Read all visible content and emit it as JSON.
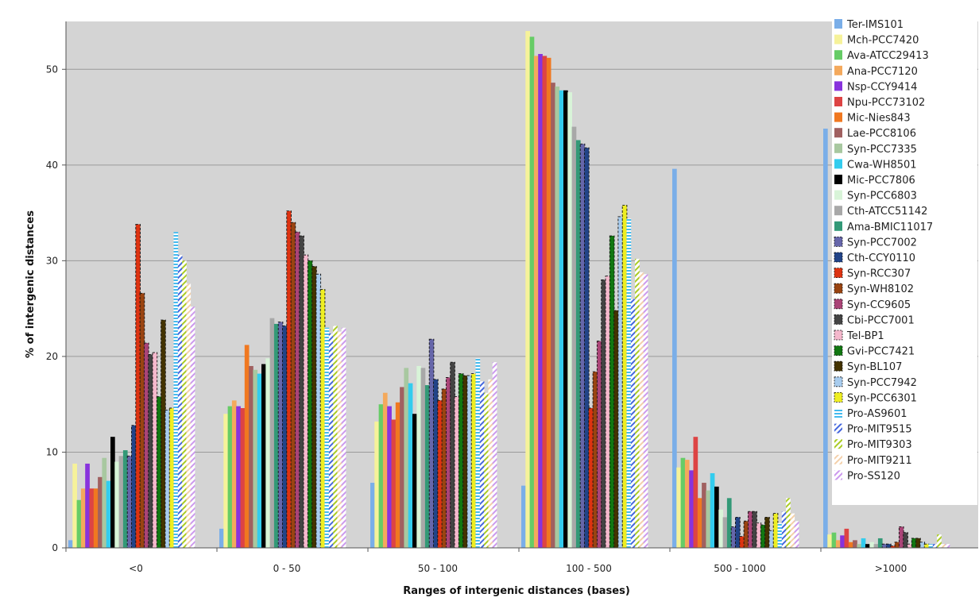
{
  "chart_data": {
    "type": "bar",
    "title": "",
    "xlabel": "Ranges of intergenic distances (bases)",
    "ylabel": "% of intergenic distances",
    "ylim": [
      0,
      55
    ],
    "yticks": [
      0,
      10,
      20,
      30,
      40,
      50
    ],
    "grid": true,
    "legend_position": "right",
    "categories": [
      "<0",
      "0 - 50",
      "50 - 100",
      "100 - 500",
      "500 - 1000",
      ">1000"
    ],
    "series": [
      {
        "name": "Ter-IMS101",
        "color": "#7aaee8",
        "pattern": "solid",
        "values": [
          0.8,
          2.0,
          6.8,
          6.5,
          39.6,
          43.8
        ]
      },
      {
        "name": "Mch-PCC7420",
        "color": "#f6f29a",
        "pattern": "solid",
        "values": [
          8.8,
          14.0,
          13.2,
          54.0,
          8.4,
          1.4
        ]
      },
      {
        "name": "Ava-ATCC29413",
        "color": "#66cc66",
        "pattern": "solid",
        "values": [
          5.0,
          14.8,
          15.0,
          53.4,
          9.4,
          1.6
        ]
      },
      {
        "name": "Ana-PCC7120",
        "color": "#f4a95c",
        "pattern": "solid",
        "values": [
          6.2,
          15.4,
          16.2,
          51.4,
          9.2,
          0.8
        ]
      },
      {
        "name": "Nsp-CCY9414",
        "color": "#8833dd",
        "pattern": "solid",
        "values": [
          8.8,
          14.8,
          14.8,
          51.6,
          8.1,
          1.3
        ]
      },
      {
        "name": "Npu-PCC73102",
        "color": "#dd4444",
        "pattern": "solid",
        "values": [
          6.2,
          14.6,
          13.4,
          51.4,
          11.6,
          2.0
        ]
      },
      {
        "name": "Mic-Nies843",
        "color": "#f07820",
        "pattern": "solid",
        "values": [
          6.2,
          21.2,
          15.2,
          51.2,
          5.2,
          0.6
        ]
      },
      {
        "name": "Lae-PCC8106",
        "color": "#a06060",
        "pattern": "solid",
        "values": [
          7.4,
          19.0,
          16.8,
          48.6,
          6.8,
          0.8
        ]
      },
      {
        "name": "Syn-PCC7335",
        "color": "#a8c8a0",
        "pattern": "solid",
        "values": [
          9.4,
          18.6,
          18.8,
          48.2,
          6.0,
          0.4
        ]
      },
      {
        "name": "Cwa-WH8501",
        "color": "#33ccee",
        "pattern": "solid",
        "values": [
          7.0,
          18.2,
          17.2,
          47.8,
          7.8,
          1.0
        ]
      },
      {
        "name": "Mic-PCC7806",
        "color": "#000000",
        "pattern": "solid",
        "values": [
          11.6,
          19.2,
          14.0,
          47.8,
          6.4,
          0.4
        ]
      },
      {
        "name": "Syn-PCC6803",
        "color": "#d8f4d8",
        "pattern": "solid",
        "values": [
          9.0,
          19.8,
          19.0,
          47.6,
          4.0,
          0.6
        ]
      },
      {
        "name": "Cth-ATCC51142",
        "color": "#a8a8a8",
        "pattern": "solid",
        "values": [
          9.6,
          24.0,
          18.8,
          44.0,
          3.2,
          0.4
        ]
      },
      {
        "name": "Ama-BMIC11017",
        "color": "#339977",
        "pattern": "solid",
        "values": [
          10.2,
          23.4,
          17.0,
          42.6,
          5.2,
          1.0
        ]
      },
      {
        "name": "Syn-PCC7002",
        "color": "#6666aa",
        "pattern": "dashed",
        "values": [
          9.6,
          23.6,
          21.8,
          42.2,
          2.2,
          0.4
        ]
      },
      {
        "name": "Cth-CCY0110",
        "color": "#224488",
        "pattern": "dashed",
        "values": [
          12.8,
          23.2,
          17.6,
          41.8,
          3.2,
          0.4
        ]
      },
      {
        "name": "Syn-RCC307",
        "color": "#dd3311",
        "pattern": "dashed",
        "values": [
          33.8,
          35.2,
          15.4,
          14.6,
          1.2,
          0.2
        ]
      },
      {
        "name": "Syn-WH8102",
        "color": "#994411",
        "pattern": "dashed",
        "values": [
          26.6,
          34.0,
          16.6,
          18.4,
          2.8,
          0.6
        ]
      },
      {
        "name": "Syn-CC9605",
        "color": "#aa4477",
        "pattern": "dashed",
        "values": [
          21.4,
          33.0,
          17.8,
          21.6,
          3.8,
          2.2
        ]
      },
      {
        "name": "Cbi-PCC7001",
        "color": "#444444",
        "pattern": "dashed",
        "values": [
          20.2,
          32.6,
          19.4,
          28.0,
          3.8,
          1.6
        ]
      },
      {
        "name": "Tel-BP1",
        "color": "#f4b8cc",
        "pattern": "dashed",
        "values": [
          20.4,
          30.6,
          15.8,
          28.4,
          2.6,
          0.4
        ]
      },
      {
        "name": "Gvi-PCC7421",
        "color": "#117711",
        "pattern": "dashed",
        "values": [
          15.8,
          30.0,
          18.2,
          32.6,
          2.4,
          1.0
        ]
      },
      {
        "name": "Syn-BL107",
        "color": "#443300",
        "pattern": "dashed",
        "values": [
          23.8,
          29.4,
          18.0,
          24.8,
          3.2,
          1.0
        ]
      },
      {
        "name": "Syn-PCC7942",
        "color": "#a8ccee",
        "pattern": "dashed",
        "values": [
          14.4,
          28.6,
          18.0,
          34.6,
          1.8,
          0.6
        ]
      },
      {
        "name": "Syn-PCC6301",
        "color": "#eeee22",
        "pattern": "dashed",
        "values": [
          14.6,
          27.0,
          18.2,
          35.8,
          3.6,
          0.4
        ]
      },
      {
        "name": "Pro-AS9601",
        "color": "#44bbee",
        "pattern": "hlines",
        "values": [
          33.0,
          23.0,
          19.8,
          34.4,
          2.6,
          0.4
        ]
      },
      {
        "name": "Pro-MIT9515",
        "color": "#4466dd",
        "pattern": "diag",
        "values": [
          30.6,
          22.4,
          17.4,
          26.0,
          3.8,
          0.4
        ]
      },
      {
        "name": "Pro-MIT9303",
        "color": "#aacc22",
        "pattern": "diag",
        "values": [
          30.0,
          23.2,
          16.2,
          30.2,
          5.2,
          1.4
        ]
      },
      {
        "name": "Pro-MIT9211",
        "color": "#f4d0aa",
        "pattern": "diag",
        "values": [
          27.6,
          22.6,
          17.6,
          28.8,
          3.6,
          0.4
        ]
      },
      {
        "name": "Pro-SS120",
        "color": "#cc99ee",
        "pattern": "diag",
        "values": [
          25.2,
          23.0,
          19.4,
          28.6,
          2.8,
          0.4
        ]
      }
    ]
  }
}
